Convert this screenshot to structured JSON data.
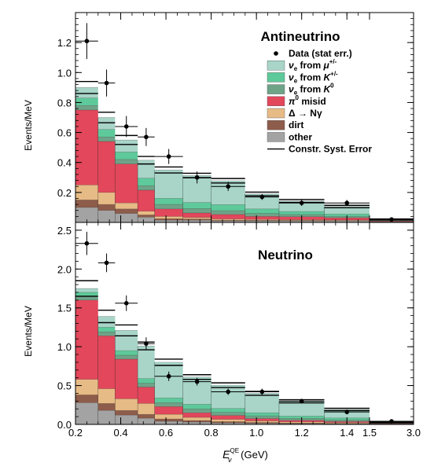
{
  "chart_data": {
    "type": "histogram-stacked",
    "x_edges": [
      0.2,
      0.3,
      0.375,
      0.475,
      0.55,
      0.675,
      0.8,
      0.95,
      1.1,
      1.3,
      1.5,
      3.0
    ],
    "x_tick_values": [
      0.2,
      0.4,
      0.6,
      0.8,
      1.0,
      1.2,
      1.4,
      1.5,
      3.0
    ],
    "x_tick_labels": [
      "0.2",
      "0.4",
      "0.6",
      "0.8",
      "1.0",
      "1.2",
      "1.4",
      "1.5",
      "3.0"
    ],
    "xlabel_main": "E",
    "xlabel_sup": "QE",
    "xlabel_sub": "ν",
    "xlabel_unit": " (GeV)",
    "legend": [
      {
        "key": "data",
        "label": "Data (stat err.)"
      },
      {
        "key": "mu",
        "label_main": "ν",
        "label_sub": "e",
        "label_rest": " from ",
        "label_particle": "μ",
        "label_sup": "+/-",
        "color": "#a8d5c8"
      },
      {
        "key": "kpm",
        "label_main": "ν",
        "label_sub": "e",
        "label_rest": " from ",
        "label_particle": "K",
        "label_sup": "+/-",
        "color": "#5ec99a"
      },
      {
        "key": "k0",
        "label_main": "ν",
        "label_sub": "e",
        "label_rest": " from ",
        "label_particle": "K",
        "label_sup": "0",
        "color": "#6fa388"
      },
      {
        "key": "pi0",
        "label_main": "π",
        "label_sup": "0",
        "label_rest": " misid",
        "color": "#e2475b"
      },
      {
        "key": "delta",
        "label": "Δ → Nγ",
        "color": "#e7bb85"
      },
      {
        "key": "dirt",
        "label": "dirt",
        "color": "#8e5c4a"
      },
      {
        "key": "other",
        "label": "other",
        "color": "#a3a3a3"
      },
      {
        "key": "syst",
        "label": "Constr. Syst. Error"
      }
    ],
    "panels": [
      {
        "title": "Antineutrino",
        "ylabel": "Events/MeV",
        "ylim": [
          0,
          1.4
        ],
        "y_ticks": [
          0.2,
          0.4,
          0.6,
          0.8,
          1.0,
          1.2
        ],
        "y_tick_labels": [
          "0.2",
          "0.4",
          "0.6",
          "0.8",
          "1.0",
          "1.2"
        ],
        "series": {
          "other": [
            0.1,
            0.08,
            0.06,
            0.035,
            0.015,
            0.015,
            0.01,
            0.01,
            0.01,
            0.01,
            0.003
          ],
          "dirt": [
            0.05,
            0.04,
            0.03,
            0.015,
            0.01,
            0.008,
            0.005,
            0.004,
            0.003,
            0.002,
            0.001
          ],
          "delta": [
            0.1,
            0.08,
            0.04,
            0.025,
            0.015,
            0.01,
            0.008,
            0.006,
            0.005,
            0.004,
            0.002
          ],
          "pi0": [
            0.5,
            0.34,
            0.26,
            0.14,
            0.05,
            0.03,
            0.03,
            0.02,
            0.02,
            0.015,
            0.004
          ],
          "k0": [
            0.03,
            0.03,
            0.03,
            0.03,
            0.03,
            0.03,
            0.025,
            0.02,
            0.015,
            0.01,
            0.003
          ],
          "kpm": [
            0.05,
            0.05,
            0.05,
            0.05,
            0.04,
            0.04,
            0.04,
            0.03,
            0.02,
            0.015,
            0.003
          ],
          "mu": [
            0.07,
            0.08,
            0.08,
            0.12,
            0.19,
            0.18,
            0.16,
            0.1,
            0.07,
            0.05,
            0.004
          ]
        },
        "syst_error": [
          0.04,
          0.035,
          0.03,
          0.025,
          0.02,
          0.015,
          0.015,
          0.012,
          0.01,
          0.008,
          0.003
        ],
        "data": {
          "x": [
            0.25,
            0.3375,
            0.425,
            0.5125,
            0.6125,
            0.7375,
            0.875,
            1.025,
            1.2,
            1.4,
            2.25
          ],
          "y": [
            1.21,
            0.93,
            0.64,
            0.57,
            0.44,
            0.3,
            0.24,
            0.17,
            0.13,
            0.13,
            0.02
          ],
          "err": [
            0.12,
            0.09,
            0.07,
            0.06,
            0.05,
            0.04,
            0.03,
            0.02,
            0.02,
            0.02,
            0.005
          ]
        }
      },
      {
        "title": "Neutrino",
        "ylabel": "Events/MeV",
        "ylim": [
          0,
          2.6
        ],
        "y_ticks": [
          0.0,
          0.5,
          1.0,
          1.5,
          2.0,
          2.5
        ],
        "y_tick_labels": [
          "0.0",
          "0.5",
          "1.0",
          "1.5",
          "2.0",
          "2.5"
        ],
        "series": {
          "other": [
            0.28,
            0.18,
            0.12,
            0.08,
            0.04,
            0.03,
            0.02,
            0.015,
            0.01,
            0.008,
            0.003
          ],
          "dirt": [
            0.1,
            0.09,
            0.06,
            0.05,
            0.03,
            0.02,
            0.015,
            0.01,
            0.008,
            0.005,
            0.002
          ],
          "delta": [
            0.2,
            0.19,
            0.15,
            0.14,
            0.06,
            0.04,
            0.03,
            0.02,
            0.015,
            0.01,
            0.003
          ],
          "pi0": [
            1.02,
            0.68,
            0.51,
            0.21,
            0.1,
            0.06,
            0.05,
            0.03,
            0.02,
            0.015,
            0.005
          ],
          "k0": [
            0.05,
            0.05,
            0.05,
            0.05,
            0.05,
            0.05,
            0.04,
            0.035,
            0.025,
            0.02,
            0.004
          ],
          "kpm": [
            0.05,
            0.06,
            0.06,
            0.06,
            0.06,
            0.06,
            0.05,
            0.04,
            0.03,
            0.025,
            0.004
          ],
          "mu": [
            0.05,
            0.14,
            0.26,
            0.42,
            0.46,
            0.35,
            0.3,
            0.25,
            0.19,
            0.11,
            0.005
          ]
        },
        "syst_error": [
          0.1,
          0.08,
          0.07,
          0.05,
          0.04,
          0.03,
          0.03,
          0.025,
          0.02,
          0.015,
          0.004
        ],
        "data": {
          "x": [
            0.25,
            0.3375,
            0.425,
            0.5125,
            0.6125,
            0.7375,
            0.875,
            1.025,
            1.2,
            1.4,
            2.25
          ],
          "y": [
            2.33,
            2.08,
            1.56,
            1.04,
            0.62,
            0.55,
            0.42,
            0.42,
            0.3,
            0.16,
            0.04
          ],
          "err": [
            0.15,
            0.12,
            0.1,
            0.08,
            0.06,
            0.05,
            0.04,
            0.04,
            0.03,
            0.03,
            0.01
          ]
        }
      }
    ]
  }
}
